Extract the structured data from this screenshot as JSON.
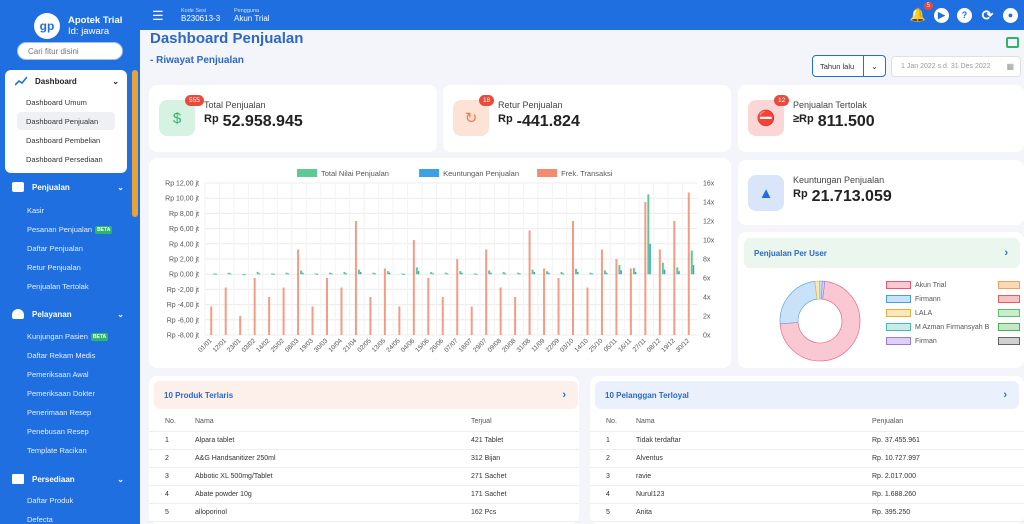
{
  "brand": {
    "name": "Apotek Trial",
    "id": "Id: jawara",
    "logo_text": "gp"
  },
  "sidebar": {
    "search_placeholder": "Cari fitur disini",
    "dashboard": {
      "label": "Dashboard",
      "items": [
        "Dashboard Umum",
        "Dashboard Penjualan",
        "Dashboard Pembelian",
        "Dashboard Persediaan"
      ],
      "active_index": 1
    },
    "penjualan": {
      "label": "Penjualan",
      "items": [
        "Kasir",
        "Pesanan Penjualan",
        "Daftar Penjualan",
        "Retur Penjualan",
        "Penjualan Tertolak"
      ]
    },
    "pelayanan": {
      "label": "Pelayanan",
      "items": [
        "Kunjungan Pasien",
        "Daftar Rekam Medis",
        "Pemeriksaan Awal",
        "Pemeriksaan Dokter",
        "Penerimaan Resep",
        "Penebusan Resep",
        "Template Racikan"
      ]
    },
    "persediaan": {
      "label": "Persediaan",
      "items": [
        "Daftar Produk",
        "Defecta"
      ]
    },
    "beta_label": "BETA"
  },
  "topbar": {
    "kode_sesi_label": "Kode Sesi",
    "kode_sesi": "B230613-3",
    "pengguna_label": "Pengguna",
    "pengguna": "Akun Trial",
    "notif_count": "5"
  },
  "page": {
    "title": "Dashboard Penjualan",
    "subtitle": "- Riwayat Penjualan"
  },
  "filter": {
    "period": "Tahun lalu",
    "date_range": "1 Jan 2022 s.d. 31 Des 2022"
  },
  "kpi": {
    "total": {
      "label": "Total Penjualan",
      "currency": "Rp",
      "value": "52.958.945",
      "badge": "555"
    },
    "retur": {
      "label": "Retur Penjualan",
      "currency": "Rp",
      "value": "-441.824",
      "badge": "18"
    },
    "tertolak": {
      "label": "Penjualan Tertolak",
      "currency": "≥Rp",
      "value": "811.500",
      "badge": "12"
    },
    "keuntungan": {
      "label": "Keuntungan Penjualan",
      "currency": "Rp",
      "value": "21.713.059"
    }
  },
  "colors": {
    "primary": "#1f6fe0",
    "green": "#2fb56a",
    "red": "#e84a3c",
    "bar_green": "#5ec994",
    "bar_blue": "#3ea0e4",
    "bar_red": "#f48a70"
  },
  "chart_data": {
    "type": "bar",
    "legend": [
      "Total Nilai Penjualan",
      "Keuntungan Penjualan",
      "Frek. Transaksi"
    ],
    "y_left_ticks": [
      "Rp 12,00 jt",
      "Rp 10,00 jt",
      "Rp 8,00 jt",
      "Rp 6,00 jt",
      "Rp 4,00 jt",
      "Rp 2,00 jt",
      "Rp 0,00 jt",
      "Rp -2,00 jt",
      "Rp -4,00 jt",
      "Rp -6,00 jt",
      "Rp -8,00 jt"
    ],
    "y_right_ticks": [
      "16x",
      "14x",
      "12x",
      "10x",
      "8x",
      "6x",
      "4x",
      "2x",
      "0x"
    ],
    "x_ticks": [
      "01/01",
      "12/01",
      "23/01",
      "03/02",
      "14/02",
      "25/02",
      "08/03",
      "19/03",
      "30/03",
      "10/04",
      "21/04",
      "02/05",
      "13/05",
      "24/05",
      "04/06",
      "15/06",
      "26/06",
      "07/07",
      "18/07",
      "29/07",
      "09/08",
      "20/08",
      "31/08",
      "11/09",
      "22/09",
      "03/10",
      "14/10",
      "25/10",
      "05/11",
      "16/11",
      "27/11",
      "08/12",
      "19/12",
      "30/12"
    ],
    "ylim_left": [
      -8,
      12
    ],
    "ylim_right": [
      0,
      16
    ],
    "series": [
      {
        "name": "Total Nilai Penjualan",
        "values": [
          0.1,
          0.2,
          0,
          0.3,
          0.1,
          0.2,
          0.5,
          0.1,
          0.2,
          0.3,
          0.6,
          0.2,
          0.4,
          0.1,
          0.9,
          0.3,
          0.2,
          0.4,
          0.1,
          0.5,
          0.3,
          0.2,
          0.6,
          0.4,
          0.3,
          0.7,
          0.2,
          0.5,
          1.2,
          0.8,
          10.5,
          1.5,
          0.9,
          3.1
        ]
      },
      {
        "name": "Keuntungan Penjualan",
        "values": [
          0.05,
          0.1,
          0,
          0.1,
          0.05,
          0.1,
          0.2,
          0.05,
          0.1,
          0.1,
          0.3,
          0.1,
          0.2,
          0.05,
          0.4,
          0.1,
          0.1,
          0.2,
          0.05,
          0.2,
          0.1,
          0.1,
          0.3,
          0.2,
          0.1,
          0.3,
          0.1,
          0.2,
          0.5,
          0.3,
          4.0,
          0.6,
          0.4,
          1.2
        ]
      },
      {
        "name": "Frek. Transaksi",
        "values": [
          3,
          5,
          2,
          6,
          4,
          5,
          9,
          3,
          6,
          5,
          12,
          4,
          7,
          3,
          10,
          6,
          4,
          8,
          3,
          9,
          5,
          4,
          11,
          7,
          6,
          12,
          5,
          9,
          8,
          7,
          14,
          9,
          12,
          15
        ]
      }
    ]
  },
  "per_user": {
    "title": "Penjualan Per User",
    "users": [
      {
        "name": "Akun Trial",
        "value": 72,
        "color": "#f9c8d2"
      },
      {
        "name": "Firmann",
        "value": 24,
        "color": "#c9e2f7"
      },
      {
        "name": "LALA",
        "value": 2,
        "color": "#fbe7b8"
      },
      {
        "name": "M Azman Firmansyah B",
        "value": 1,
        "color": "#c7ece8"
      },
      {
        "name": "Firman",
        "value": 1,
        "color": "#dcd0f7"
      }
    ],
    "extra_colors": [
      "#fbd9b5",
      "#f6c2c2",
      "#c9eccd",
      "#c3e8c6",
      "#d0d0d0"
    ]
  },
  "produk": {
    "title": "10 Produk Terlaris",
    "headers": [
      "No.",
      "Nama",
      "Terjual"
    ],
    "rows": [
      [
        "1",
        "Alpara tablet",
        "421 Tablet"
      ],
      [
        "2",
        "A&G Handsanitizer 250ml",
        "312 Bijan"
      ],
      [
        "3",
        "Abbotic XL 500mg/Tablet",
        "271 Sachet"
      ],
      [
        "4",
        "Abate powder 10g",
        "171 Sachet"
      ],
      [
        "5",
        "alloporinol",
        "162 Pcs"
      ]
    ]
  },
  "pelanggan": {
    "title": "10 Pelanggan Terloyal",
    "headers": [
      "No.",
      "Nama",
      "Penjualan"
    ],
    "rows": [
      [
        "1",
        "Tidak terdaftar",
        "Rp. 37.455.961"
      ],
      [
        "2",
        "Alventus",
        "Rp. 10.727.997"
      ],
      [
        "3",
        "ravie",
        "Rp. 2.017.000"
      ],
      [
        "4",
        "Nurul123",
        "Rp. 1.688.260"
      ],
      [
        "5",
        "Anita",
        "Rp. 395.250"
      ]
    ]
  }
}
